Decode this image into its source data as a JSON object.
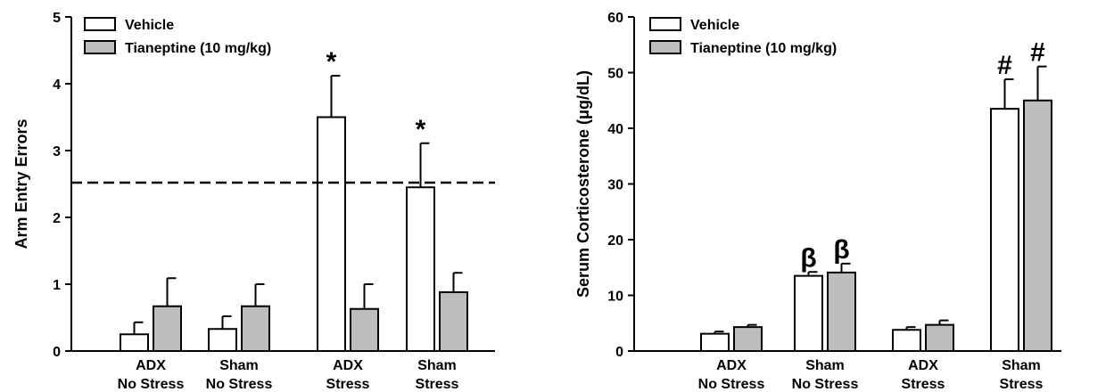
{
  "chart_data": [
    {
      "type": "bar",
      "ylabel": "Arm Entry Errors",
      "ylim": [
        0,
        5
      ],
      "yticks": [
        0,
        1,
        2,
        3,
        4,
        5
      ],
      "categories": [
        [
          "ADX",
          "No Stress"
        ],
        [
          "Sham",
          "No Stress"
        ],
        [
          "ADX",
          "Stress"
        ],
        [
          "Sham",
          "Stress"
        ]
      ],
      "series": [
        {
          "name": "Vehicle",
          "color": "#ffffff",
          "values": [
            0.25,
            0.33,
            3.5,
            2.45
          ],
          "errors": [
            0.18,
            0.19,
            0.62,
            0.66
          ],
          "annotations": [
            "",
            "",
            "*",
            "*"
          ]
        },
        {
          "name": "Tianeptine (10 mg/kg)",
          "color": "#bdbdbd",
          "values": [
            0.67,
            0.67,
            0.63,
            0.88
          ],
          "errors": [
            0.42,
            0.33,
            0.37,
            0.29
          ],
          "annotations": [
            "",
            "",
            "",
            ""
          ]
        }
      ],
      "reference_line": {
        "y": 2.52,
        "style": "dashed"
      },
      "legend": "top-left",
      "grid": false
    },
    {
      "type": "bar",
      "ylabel": "Serum Corticosterone (μg/dL)",
      "ylim": [
        0,
        60
      ],
      "yticks": [
        0,
        10,
        20,
        30,
        40,
        50,
        60
      ],
      "categories": [
        [
          "ADX",
          "No Stress"
        ],
        [
          "Sham",
          "No Stress"
        ],
        [
          "ADX",
          "Stress"
        ],
        [
          "Sham",
          "Stress"
        ]
      ],
      "series": [
        {
          "name": "Vehicle",
          "color": "#ffffff",
          "values": [
            3.1,
            13.5,
            3.8,
            43.5
          ],
          "errors": [
            0.4,
            0.7,
            0.5,
            5.3
          ],
          "annotations": [
            "",
            "β",
            "",
            "#"
          ]
        },
        {
          "name": "Tianeptine (10 mg/kg)",
          "color": "#bdbdbd",
          "values": [
            4.3,
            14.1,
            4.7,
            45.0
          ],
          "errors": [
            0.4,
            1.6,
            0.8,
            6.1
          ],
          "annotations": [
            "",
            "β",
            "",
            "#"
          ]
        }
      ],
      "legend": "top-left",
      "grid": false
    }
  ]
}
